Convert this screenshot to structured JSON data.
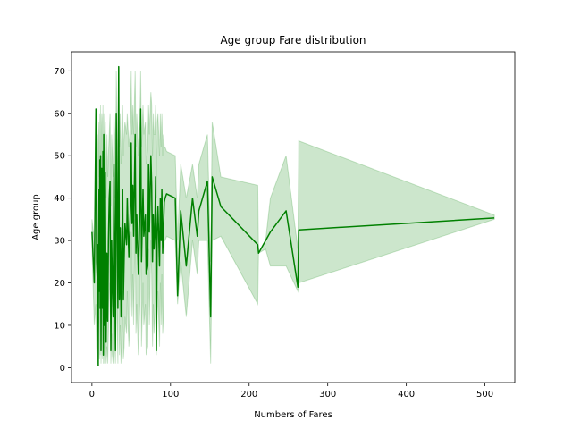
{
  "chart_data": {
    "type": "line",
    "title": "Age group Fare distribution",
    "xlabel": "Numbers of Fares",
    "ylabel": "Age group",
    "xlim": [
      -26,
      538
    ],
    "ylim": [
      -3.5,
      74.5
    ],
    "xticks": [
      0,
      100,
      200,
      300,
      400,
      500
    ],
    "yticks": [
      0,
      10,
      20,
      30,
      40,
      50,
      60,
      70
    ],
    "grid": false,
    "legend": "none",
    "series": [
      {
        "color": "#008000",
        "band_color": "#008000",
        "band_opacity": 0.2,
        "x": [
          0,
          3,
          5,
          6,
          7,
          7.5,
          8,
          8.5,
          9,
          9.5,
          10,
          10.5,
          11,
          11.5,
          12,
          12.5,
          13,
          13.5,
          14,
          14.5,
          15,
          15.5,
          16,
          16.5,
          17,
          18,
          19,
          20,
          21,
          22,
          23,
          24,
          25,
          26,
          27,
          28,
          29,
          30,
          31,
          32,
          33,
          34,
          35,
          36,
          37,
          38,
          39,
          40,
          41,
          42,
          44,
          45,
          46,
          47,
          49,
          50,
          51,
          52,
          53,
          55,
          56,
          57,
          59,
          60,
          61,
          62,
          63,
          65,
          66,
          68,
          69,
          71,
          72,
          73,
          75,
          76,
          77,
          78,
          79,
          80,
          81,
          82,
          83,
          84,
          86,
          87,
          88,
          89,
          90,
          91,
          92,
          93,
          95,
          106,
          109,
          113,
          120,
          128,
          134,
          136,
          147,
          151,
          153,
          164,
          211,
          212,
          221,
          227,
          247,
          262,
          263,
          512
        ],
        "y": [
          32,
          20,
          61,
          25,
          20,
          29,
          0.5,
          31,
          42,
          18,
          49,
          14,
          50,
          4,
          28,
          47,
          36,
          14,
          51,
          3,
          55,
          27,
          10,
          32,
          46,
          6,
          27,
          11,
          30,
          40,
          44,
          4,
          30,
          20,
          12,
          48,
          25,
          4,
          60,
          37,
          14,
          71,
          16,
          33,
          12,
          28,
          42,
          16,
          26,
          34,
          29,
          40,
          32,
          26,
          38,
          53,
          34,
          43,
          31,
          55,
          27,
          36,
          22,
          29,
          37,
          61,
          25,
          42,
          31,
          36,
          22,
          24,
          48,
          32,
          50,
          43,
          25,
          36,
          28,
          32,
          45,
          4,
          33,
          38,
          24,
          40,
          30,
          42,
          27,
          33,
          39,
          40,
          41,
          40,
          17,
          37,
          24,
          40,
          31,
          37,
          44,
          12,
          45,
          38,
          29,
          27,
          30,
          32,
          37,
          19,
          32.5,
          35.3
        ],
        "band_upper": [
          35,
          30,
          40,
          52,
          55,
          50,
          42,
          55,
          58,
          45,
          60,
          50,
          62,
          40,
          55,
          60,
          58,
          42,
          62,
          40,
          60,
          55,
          45,
          55,
          58,
          40,
          55,
          45,
          50,
          55,
          60,
          38,
          55,
          50,
          45,
          60,
          55,
          40,
          70,
          58,
          48,
          68,
          52,
          60,
          48,
          55,
          62,
          50,
          55,
          58,
          55,
          60,
          56,
          52,
          58,
          70,
          55,
          62,
          55,
          70,
          52,
          60,
          50,
          55,
          58,
          70,
          52,
          62,
          55,
          58,
          48,
          52,
          62,
          55,
          65,
          62,
          50,
          60,
          55,
          55,
          62,
          40,
          58,
          60,
          50,
          60,
          52,
          60,
          50,
          55,
          52,
          52,
          51,
          50,
          30,
          48,
          40,
          48,
          40,
          48,
          55,
          25,
          58,
          45,
          43,
          27,
          30,
          40,
          50,
          28,
          53.5,
          36
        ],
        "band_lower": [
          28,
          10,
          15,
          5,
          1,
          10,
          0.5,
          5,
          12,
          2,
          20,
          3,
          18,
          1,
          5,
          15,
          8,
          2,
          22,
          1,
          30,
          5,
          1,
          8,
          18,
          1,
          5,
          1,
          8,
          18,
          20,
          1,
          8,
          3,
          1,
          20,
          5,
          1,
          35,
          12,
          1,
          45,
          3,
          10,
          1,
          5,
          18,
          2,
          5,
          12,
          8,
          18,
          10,
          5,
          15,
          32,
          12,
          22,
          10,
          35,
          8,
          15,
          3,
          8,
          15,
          40,
          5,
          20,
          10,
          15,
          3,
          5,
          28,
          10,
          30,
          22,
          5,
          15,
          8,
          12,
          25,
          3,
          12,
          18,
          5,
          20,
          10,
          22,
          8,
          12,
          30,
          30,
          31,
          30,
          15,
          25,
          12,
          30,
          22,
          30,
          30,
          1,
          30,
          31,
          15,
          27,
          28,
          24,
          24,
          18,
          20,
          35
        ]
      }
    ]
  }
}
